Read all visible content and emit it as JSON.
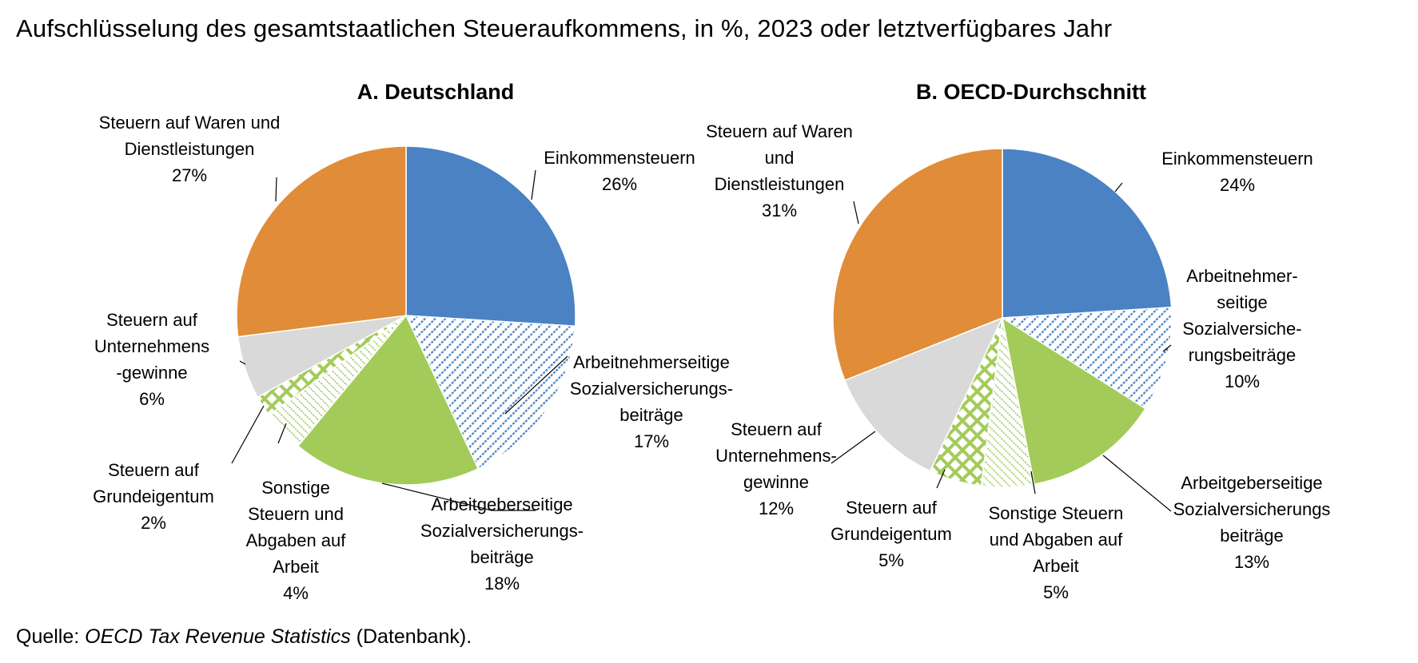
{
  "title": "Aufschlüsselung des gesamtstaatlichen Steueraufkommens, in %, 2023 oder letztverfügbares Jahr",
  "source": {
    "prefix": "Quelle: ",
    "title": "OECD Tax Revenue Statistics",
    "suffix": " (Datenbank)."
  },
  "colors": {
    "income": "#4a82c4",
    "employee": "#4a82c4",
    "employer": "#a3cb5a",
    "other_labour": "#a3cb5a",
    "property": "#a3cb5a",
    "corporate": "#d9d9d9",
    "goods": "#e08c38"
  },
  "chart_data": [
    {
      "type": "pie",
      "title": "A. Deutschland",
      "slices": [
        {
          "key": "income",
          "label": [
            "Einkommensteuern",
            "26%"
          ],
          "value": 26,
          "pattern": "solid"
        },
        {
          "key": "employee",
          "label": [
            "Arbeitnehmerseitige",
            "Sozialversicherungs-",
            "beiträge",
            "17%"
          ],
          "value": 17,
          "pattern": "diagonal"
        },
        {
          "key": "employer",
          "label": [
            "Arbeitgeberseitige",
            "Sozialversicherungs-",
            "beiträge",
            "18%"
          ],
          "value": 18,
          "pattern": "solid"
        },
        {
          "key": "other_labour",
          "label": [
            "Sonstige",
            "Steuern und",
            "Abgaben auf",
            "Arbeit",
            "4%"
          ],
          "value": 4,
          "pattern": "dotted"
        },
        {
          "key": "property",
          "label": [
            "Steuern auf",
            "Grundeigentum",
            "2%"
          ],
          "value": 2,
          "pattern": "grid"
        },
        {
          "key": "corporate",
          "label": [
            "Steuern auf",
            "Unternehmens",
            "-gewinne",
            "6%"
          ],
          "value": 6,
          "pattern": "solid"
        },
        {
          "key": "goods",
          "label": [
            "Steuern auf Waren und",
            "Dienstleistungen",
            "27%"
          ],
          "value": 27,
          "pattern": "solid"
        }
      ]
    },
    {
      "type": "pie",
      "title": "B. OECD-Durchschnitt",
      "slices": [
        {
          "key": "income",
          "label": [
            "Einkommensteuern",
            "24%"
          ],
          "value": 24,
          "pattern": "solid"
        },
        {
          "key": "employee",
          "label": [
            "Arbeitnehmer-",
            "seitige",
            "Sozialversiche-",
            "rungsbeiträge",
            "10%"
          ],
          "value": 10,
          "pattern": "diagonal"
        },
        {
          "key": "employer",
          "label": [
            "Arbeitgeberseitige",
            "Sozialversicherungs",
            "beiträge",
            "13%"
          ],
          "value": 13,
          "pattern": "solid"
        },
        {
          "key": "other_labour",
          "label": [
            "Sonstige Steuern",
            "und Abgaben auf",
            "Arbeit",
            "5%"
          ],
          "value": 5,
          "pattern": "dotted"
        },
        {
          "key": "property",
          "label": [
            "Steuern auf",
            "Grundeigentum",
            "5%"
          ],
          "value": 5,
          "pattern": "grid"
        },
        {
          "key": "corporate",
          "label": [
            "Steuern auf",
            "Unternehmens-",
            "gewinne",
            "12%"
          ],
          "value": 12,
          "pattern": "solid"
        },
        {
          "key": "goods",
          "label": [
            "Steuern auf Waren",
            "und",
            "Dienstleistungen",
            "31%"
          ],
          "value": 31,
          "pattern": "solid"
        }
      ]
    }
  ]
}
